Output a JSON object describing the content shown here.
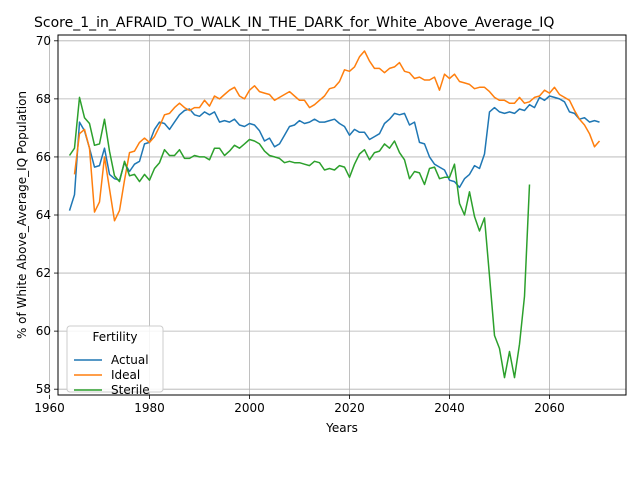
{
  "chart_data": {
    "type": "line",
    "title": "Score_1_in_AFRAID_TO_WALK_IN_THE_DARK_for_White_Above_Average_IQ",
    "xlabel": "Years",
    "ylabel": "% of White Above_Average_IQ Population",
    "xlim": [
      1961.7,
      2075.3
    ],
    "ylim": [
      57.8,
      70.2
    ],
    "xticks": [
      1960,
      1980,
      2000,
      2020,
      2040,
      2060
    ],
    "yticks": [
      58,
      60,
      62,
      64,
      66,
      68,
      70
    ],
    "grid": true,
    "legend": {
      "title": "Fertility",
      "placement": "lower-left"
    },
    "series": [
      {
        "name": "Actual",
        "color": "#1f77b4",
        "x": [
          1964,
          1965,
          1966,
          1967,
          1968,
          1969,
          1970,
          1971,
          1972,
          1973,
          1974,
          1975,
          1976,
          1977,
          1978,
          1979,
          1980,
          1981,
          1982,
          1983,
          1984,
          1985,
          1986,
          1987,
          1988,
          1989,
          1990,
          1991,
          1992,
          1993,
          1994,
          1995,
          1996,
          1997,
          1998,
          1999,
          2000,
          2001,
          2002,
          2003,
          2004,
          2005,
          2006,
          2007,
          2008,
          2009,
          2010,
          2011,
          2012,
          2013,
          2014,
          2015,
          2016,
          2017,
          2018,
          2019,
          2020,
          2021,
          2022,
          2023,
          2024,
          2025,
          2026,
          2027,
          2028,
          2029,
          2030,
          2031,
          2032,
          2033,
          2034,
          2035,
          2036,
          2037,
          2038,
          2039,
          2040,
          2041,
          2042,
          2043,
          2044,
          2045,
          2046,
          2047,
          2048,
          2049,
          2050,
          2051,
          2052,
          2053,
          2054,
          2055,
          2056,
          2057,
          2058,
          2059,
          2060,
          2061,
          2062,
          2063,
          2064,
          2065,
          2066,
          2067,
          2068,
          2069,
          2070
        ],
        "values": [
          64.15,
          64.7,
          67.2,
          66.9,
          66.3,
          65.65,
          65.7,
          66.3,
          65.4,
          65.25,
          65.2,
          65.8,
          65.5,
          65.75,
          65.85,
          66.45,
          66.5,
          66.95,
          67.2,
          67.15,
          66.95,
          67.2,
          67.45,
          67.6,
          67.65,
          67.45,
          67.4,
          67.55,
          67.45,
          67.55,
          67.2,
          67.25,
          67.2,
          67.3,
          67.1,
          67.05,
          67.15,
          67.1,
          66.9,
          66.55,
          66.65,
          66.35,
          66.45,
          66.75,
          67.05,
          67.1,
          67.25,
          67.15,
          67.2,
          67.3,
          67.2,
          67.2,
          67.25,
          67.3,
          67.15,
          67.05,
          66.75,
          66.95,
          66.85,
          66.85,
          66.6,
          66.7,
          66.8,
          67.15,
          67.3,
          67.5,
          67.45,
          67.5,
          67.1,
          67.2,
          66.5,
          66.45,
          66.0,
          65.75,
          65.65,
          65.55,
          65.2,
          65.15,
          64.95,
          65.25,
          65.4,
          65.7,
          65.6,
          66.1,
          67.55,
          67.7,
          67.55,
          67.5,
          67.55,
          67.5,
          67.65,
          67.6,
          67.8,
          67.7,
          68.05,
          67.95,
          68.1,
          68.05,
          68.0,
          67.9,
          67.55,
          67.5,
          67.3,
          67.35,
          67.2,
          67.25,
          67.2
        ]
      },
      {
        "name": "Ideal",
        "color": "#ff7f0e",
        "x": [
          1965,
          1966,
          1967,
          1968,
          1969,
          1970,
          1971,
          1972,
          1973,
          1974,
          1975,
          1976,
          1977,
          1978,
          1979,
          1980,
          1981,
          1982,
          1983,
          1984,
          1985,
          1986,
          1987,
          1988,
          1989,
          1990,
          1991,
          1992,
          1993,
          1994,
          1995,
          1996,
          1997,
          1998,
          1999,
          2000,
          2001,
          2002,
          2003,
          2004,
          2005,
          2006,
          2007,
          2008,
          2009,
          2010,
          2011,
          2012,
          2013,
          2014,
          2015,
          2016,
          2017,
          2018,
          2019,
          2020,
          2021,
          2022,
          2023,
          2024,
          2025,
          2026,
          2027,
          2028,
          2029,
          2030,
          2031,
          2032,
          2033,
          2034,
          2035,
          2036,
          2037,
          2038,
          2039,
          2040,
          2041,
          2042,
          2043,
          2044,
          2045,
          2046,
          2047,
          2048,
          2049,
          2050,
          2051,
          2052,
          2053,
          2054,
          2055,
          2056,
          2057,
          2058,
          2059,
          2060,
          2061,
          2062,
          2063,
          2064,
          2065,
          2066,
          2067,
          2068,
          2069,
          2070
        ],
        "values": [
          65.4,
          66.8,
          66.95,
          66.3,
          64.1,
          64.45,
          66.0,
          64.9,
          63.8,
          64.15,
          65.2,
          66.15,
          66.2,
          66.5,
          66.65,
          66.5,
          66.7,
          67.05,
          67.45,
          67.5,
          67.7,
          67.85,
          67.7,
          67.6,
          67.7,
          67.7,
          67.95,
          67.75,
          68.1,
          68.0,
          68.15,
          68.3,
          68.4,
          68.1,
          68.0,
          68.3,
          68.45,
          68.25,
          68.2,
          68.15,
          67.95,
          68.05,
          68.15,
          68.25,
          68.1,
          67.95,
          67.95,
          67.7,
          67.8,
          67.95,
          68.1,
          68.35,
          68.4,
          68.6,
          69.0,
          68.95,
          69.1,
          69.45,
          69.65,
          69.3,
          69.05,
          69.05,
          68.9,
          69.05,
          69.1,
          69.25,
          68.95,
          68.9,
          68.7,
          68.75,
          68.65,
          68.65,
          68.75,
          68.3,
          68.85,
          68.7,
          68.85,
          68.6,
          68.55,
          68.5,
          68.35,
          68.4,
          68.4,
          68.25,
          68.05,
          67.95,
          67.95,
          67.85,
          67.85,
          68.05,
          67.85,
          67.9,
          68.05,
          68.1,
          68.3,
          68.2,
          68.4,
          68.15,
          68.05,
          67.95,
          67.6,
          67.3,
          67.1,
          66.8,
          66.35,
          66.55
        ]
      },
      {
        "name": "Sterile",
        "color": "#2ca02c",
        "x": [
          1964,
          1965,
          1966,
          1967,
          1968,
          1969,
          1970,
          1971,
          1972,
          1973,
          1974,
          1975,
          1976,
          1977,
          1978,
          1979,
          1980,
          1981,
          1982,
          1983,
          1984,
          1985,
          1986,
          1987,
          1988,
          1989,
          1990,
          1991,
          1992,
          1993,
          1994,
          1995,
          1996,
          1997,
          1998,
          1999,
          2000,
          2001,
          2002,
          2003,
          2004,
          2005,
          2006,
          2007,
          2008,
          2009,
          2010,
          2011,
          2012,
          2013,
          2014,
          2015,
          2016,
          2017,
          2018,
          2019,
          2020,
          2021,
          2022,
          2023,
          2024,
          2025,
          2026,
          2027,
          2028,
          2029,
          2030,
          2031,
          2032,
          2033,
          2034,
          2035,
          2036,
          2037,
          2038,
          2039,
          2040,
          2041,
          2042,
          2043,
          2044,
          2045,
          2046,
          2047,
          2048,
          2049,
          2050,
          2051,
          2052,
          2053,
          2054,
          2055,
          2056
        ],
        "values": [
          66.05,
          66.3,
          68.05,
          67.35,
          67.15,
          66.4,
          66.45,
          67.3,
          66.2,
          65.35,
          65.15,
          65.85,
          65.35,
          65.4,
          65.15,
          65.4,
          65.2,
          65.6,
          65.8,
          66.25,
          66.05,
          66.05,
          66.25,
          65.95,
          65.95,
          66.05,
          66.0,
          66.0,
          65.9,
          66.3,
          66.3,
          66.05,
          66.2,
          66.4,
          66.3,
          66.45,
          66.6,
          66.55,
          66.45,
          66.2,
          66.05,
          66.0,
          65.95,
          65.8,
          65.85,
          65.8,
          65.8,
          65.75,
          65.7,
          65.85,
          65.8,
          65.55,
          65.6,
          65.55,
          65.7,
          65.65,
          65.3,
          65.75,
          66.1,
          66.25,
          65.9,
          66.15,
          66.2,
          66.45,
          66.3,
          66.55,
          66.15,
          65.9,
          65.25,
          65.5,
          65.45,
          65.05,
          65.6,
          65.65,
          65.25,
          65.3,
          65.3,
          65.75,
          64.4,
          64.0,
          64.8,
          63.95,
          63.45,
          63.9,
          61.9,
          59.85,
          59.4,
          58.4,
          59.3,
          58.4,
          59.55,
          61.2,
          65.05
        ]
      }
    ]
  }
}
